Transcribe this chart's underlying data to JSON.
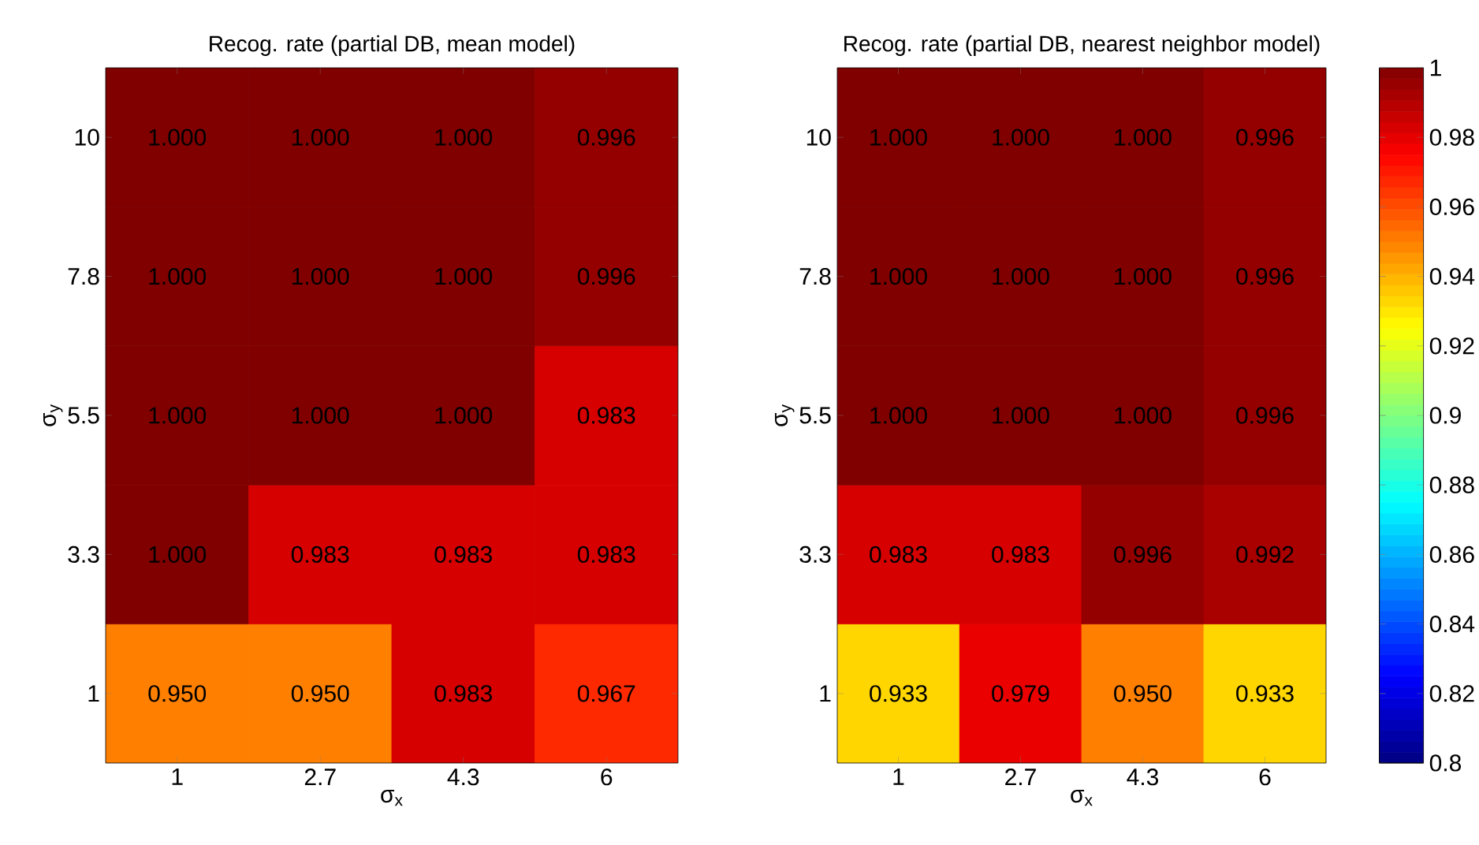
{
  "chart_data": [
    {
      "type": "heatmap",
      "title": "Recog. rate (partial DB, mean model)",
      "xlabel": "σ$_{x}$",
      "ylabel": "σ$_{y}$",
      "categories": [
        "1",
        "2.7",
        "4.3",
        "6"
      ],
      "y_categories": [
        "10",
        "7.8",
        "5.5",
        "3.3",
        "1"
      ],
      "cells": [
        [
          1.0,
          1.0,
          1.0,
          0.996
        ],
        [
          1.0,
          1.0,
          1.0,
          0.996
        ],
        [
          1.0,
          1.0,
          1.0,
          0.983
        ],
        [
          1.0,
          0.983,
          0.983,
          0.983
        ],
        [
          0.95,
          0.95,
          0.983,
          0.967
        ]
      ],
      "cell_labels": [
        [
          "1.000",
          "1.000",
          "1.000",
          "0.996"
        ],
        [
          "1.000",
          "1.000",
          "1.000",
          "0.996"
        ],
        [
          "1.000",
          "1.000",
          "1.000",
          "0.983"
        ],
        [
          "1.000",
          "0.983",
          "0.983",
          "0.983"
        ],
        [
          "0.950",
          "0.950",
          "0.983",
          "0.967"
        ]
      ]
    },
    {
      "type": "heatmap",
      "title": "Recog. rate (partial DB, nearest neighbor model)",
      "xlabel": "σ$_{x}$",
      "ylabel": "σ$_{y}$",
      "categories": [
        "1",
        "2.7",
        "4.3",
        "6"
      ],
      "y_categories": [
        "10",
        "7.8",
        "5.5",
        "3.3",
        "1"
      ],
      "cells": [
        [
          1.0,
          1.0,
          1.0,
          0.996
        ],
        [
          1.0,
          1.0,
          1.0,
          0.996
        ],
        [
          1.0,
          1.0,
          1.0,
          0.996
        ],
        [
          0.983,
          0.983,
          0.996,
          0.992
        ],
        [
          0.933,
          0.979,
          0.95,
          0.933
        ]
      ],
      "cell_labels": [
        [
          "1.000",
          "1.000",
          "1.000",
          "0.996"
        ],
        [
          "1.000",
          "1.000",
          "1.000",
          "0.996"
        ],
        [
          "1.000",
          "1.000",
          "1.000",
          "0.996"
        ],
        [
          "0.983",
          "0.983",
          "0.996",
          "0.992"
        ],
        [
          "0.933",
          "0.979",
          "0.950",
          "0.933"
        ]
      ],
      "clim": [
        0.8,
        1
      ],
      "cticks": [
        0.8,
        0.82,
        0.84,
        0.86,
        0.88,
        0.9,
        0.92,
        0.94,
        0.96,
        0.98,
        1
      ]
    }
  ]
}
